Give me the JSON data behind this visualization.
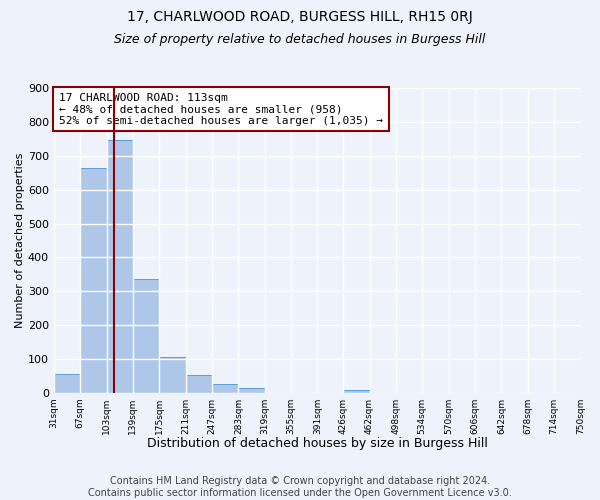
{
  "title": "17, CHARLWOOD ROAD, BURGESS HILL, RH15 0RJ",
  "subtitle": "Size of property relative to detached houses in Burgess Hill",
  "xlabel": "Distribution of detached houses by size in Burgess Hill",
  "ylabel": "Number of detached properties",
  "footer_lines": [
    "Contains HM Land Registry data © Crown copyright and database right 2024.",
    "Contains public sector information licensed under the Open Government Licence v3.0."
  ],
  "bar_edges": [
    31,
    67,
    103,
    139,
    175,
    211,
    247,
    283,
    319,
    355,
    391,
    426,
    462,
    498,
    534,
    570,
    606,
    642,
    678,
    714,
    750
  ],
  "bar_heights": [
    55,
    665,
    748,
    335,
    105,
    52,
    27,
    15,
    0,
    0,
    0,
    8,
    0,
    0,
    0,
    0,
    0,
    0,
    0,
    0
  ],
  "bar_color": "#aec6e8",
  "bar_edge_color": "#5a9fd4",
  "vline_x": 113,
  "vline_color": "#8b0000",
  "annotation_line1": "17 CHARLWOOD ROAD: 113sqm",
  "annotation_line2": "← 48% of detached houses are smaller (958)",
  "annotation_line3": "52% of semi-detached houses are larger (1,035) →",
  "annotation_box_color": "#8b0000",
  "annotation_text_fontsize": 8,
  "ylim": [
    0,
    900
  ],
  "yticks": [
    0,
    100,
    200,
    300,
    400,
    500,
    600,
    700,
    800,
    900
  ],
  "tick_labels": [
    "31sqm",
    "67sqm",
    "103sqm",
    "139sqm",
    "175sqm",
    "211sqm",
    "247sqm",
    "283sqm",
    "319sqm",
    "355sqm",
    "391sqm",
    "426sqm",
    "462sqm",
    "498sqm",
    "534sqm",
    "570sqm",
    "606sqm",
    "642sqm",
    "678sqm",
    "714sqm",
    "750sqm"
  ],
  "bg_color": "#eef2fa",
  "plot_bg_color": "#eef2fa",
  "grid_color": "#ffffff",
  "title_fontsize": 10,
  "subtitle_fontsize": 9,
  "xlabel_fontsize": 9,
  "ylabel_fontsize": 8,
  "footer_fontsize": 7
}
